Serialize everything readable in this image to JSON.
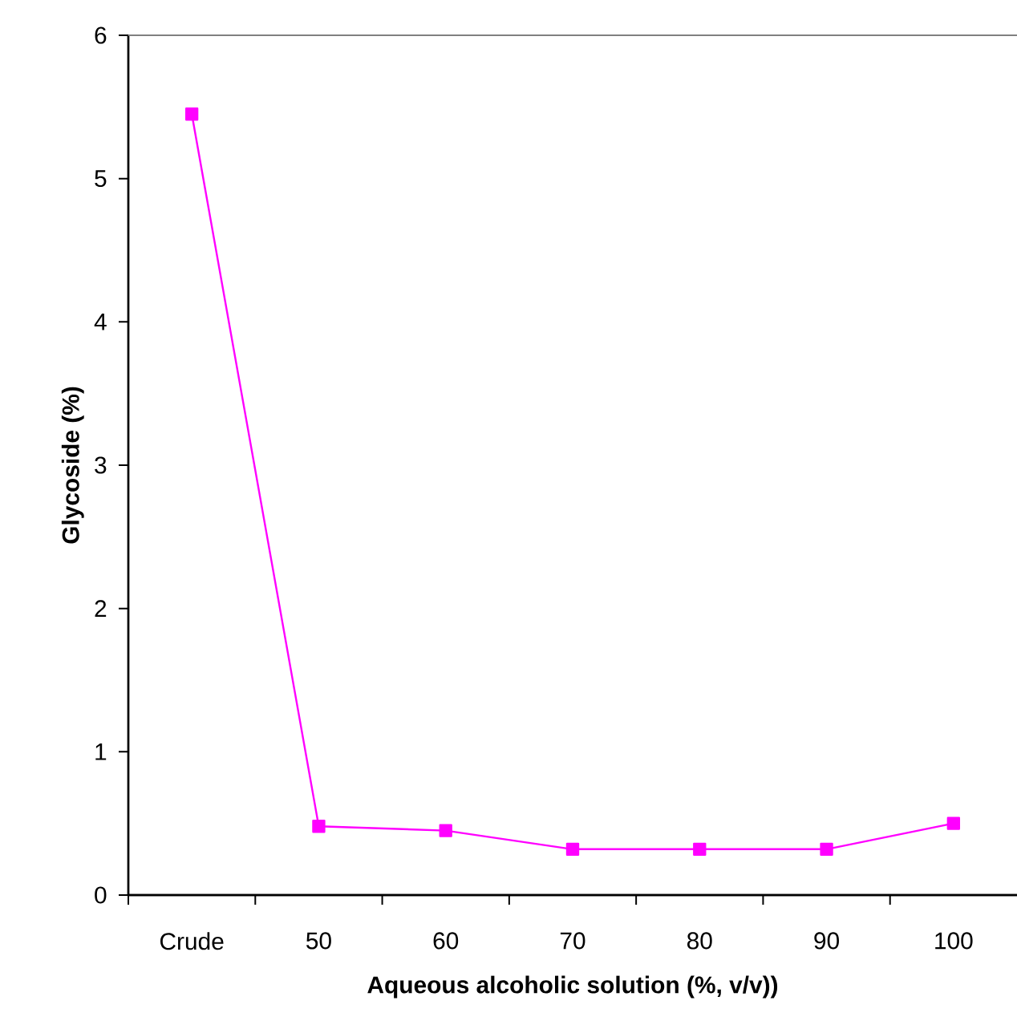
{
  "chart_data": {
    "type": "line",
    "xlabel": "Aqueous alcoholic solution (%, v/v))",
    "ylabel": "Glycoside (%)",
    "categories": [
      "Crude",
      "50",
      "60",
      "70",
      "80",
      "90",
      "100"
    ],
    "series": [
      {
        "color": "#ff00ff",
        "values": [
          5.45,
          0.48,
          0.45,
          0.32,
          0.32,
          0.32,
          0.5
        ]
      }
    ],
    "ylim": [
      0,
      6
    ],
    "yticks": [
      0,
      1,
      2,
      3,
      4,
      5,
      6
    ],
    "marker": "square",
    "line_style": "solid"
  }
}
